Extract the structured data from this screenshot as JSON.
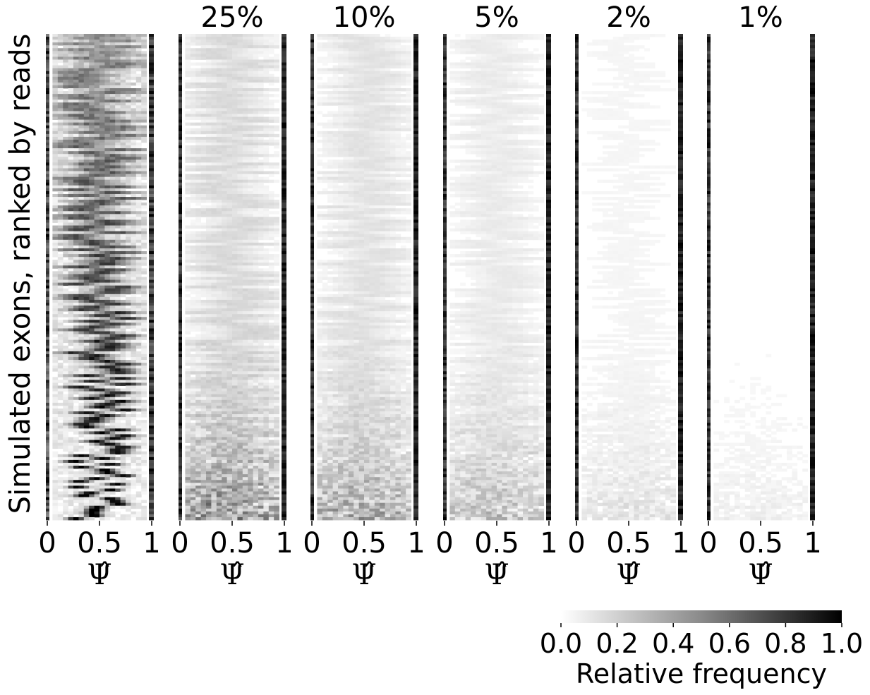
{
  "chart_data": {
    "type": "heatmap",
    "colormap": "Greys",
    "ylabel": "Simulated exons, ranked by reads",
    "shared_xlabel": "Ψ̂",
    "panels": [
      {
        "title": "",
        "xlabel": "Ψ̂",
        "xticks": [
          "0",
          "0.5",
          "1"
        ],
        "xlim": [
          0,
          1
        ],
        "density": 1.0
      },
      {
        "title": "25%",
        "xlabel": "Ψ̂",
        "xticks": [
          "0",
          "0.5",
          "1"
        ],
        "xlim": [
          0,
          1
        ],
        "density": 0.55
      },
      {
        "title": "10%",
        "xlabel": "Ψ̂",
        "xticks": [
          "0",
          "0.5",
          "1"
        ],
        "xlim": [
          0,
          1
        ],
        "density": 0.42
      },
      {
        "title": "5%",
        "xlabel": "Ψ̂",
        "xticks": [
          "0",
          "0.5",
          "1"
        ],
        "xlim": [
          0,
          1
        ],
        "density": 0.3
      },
      {
        "title": "2%",
        "xlabel": "Ψ̂",
        "xticks": [
          "0",
          "0.5",
          "1"
        ],
        "xlim": [
          0,
          1
        ],
        "density": 0.14
      },
      {
        "title": "1%",
        "xlabel": "Ψ̂",
        "xticks": [
          "0",
          "0.5",
          "1"
        ],
        "xlim": [
          0,
          1
        ],
        "density": 0.08
      }
    ],
    "colorbar": {
      "label": "Relative frequency",
      "ticks": [
        "0.0",
        "0.2",
        "0.4",
        "0.6",
        "0.8",
        "1.0"
      ],
      "range": [
        0,
        1
      ],
      "colors": [
        "#ffffff",
        "#000000"
      ]
    },
    "grid": false,
    "legend": "none"
  }
}
